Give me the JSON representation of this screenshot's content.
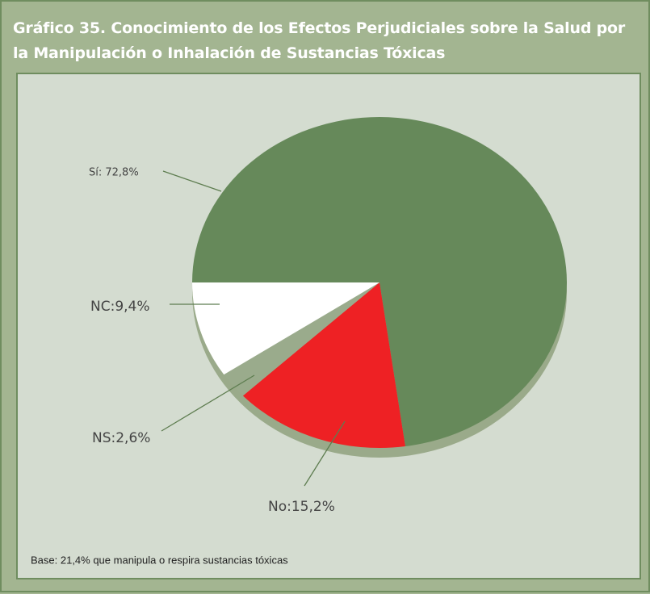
{
  "chart_data": {
    "type": "pie",
    "title": "Gráfico 35. Conocimiento de los Efectos Perjudiciales sobre la Salud por la Manipulación o Inhalación de Sustancias Tóxicas",
    "values": [
      72.8,
      15.2,
      2.6,
      9.4
    ],
    "value_labels": [
      "Sí: 72,8%",
      "No:15,2%",
      "NS:2,6%",
      "NC:9,4%"
    ],
    "colors": [
      "#66895a",
      "#ee2124",
      "#9aab8c",
      "#ffffff"
    ],
    "note": "Base: 21,4% que manipula o respira sustancias tóxicas"
  }
}
